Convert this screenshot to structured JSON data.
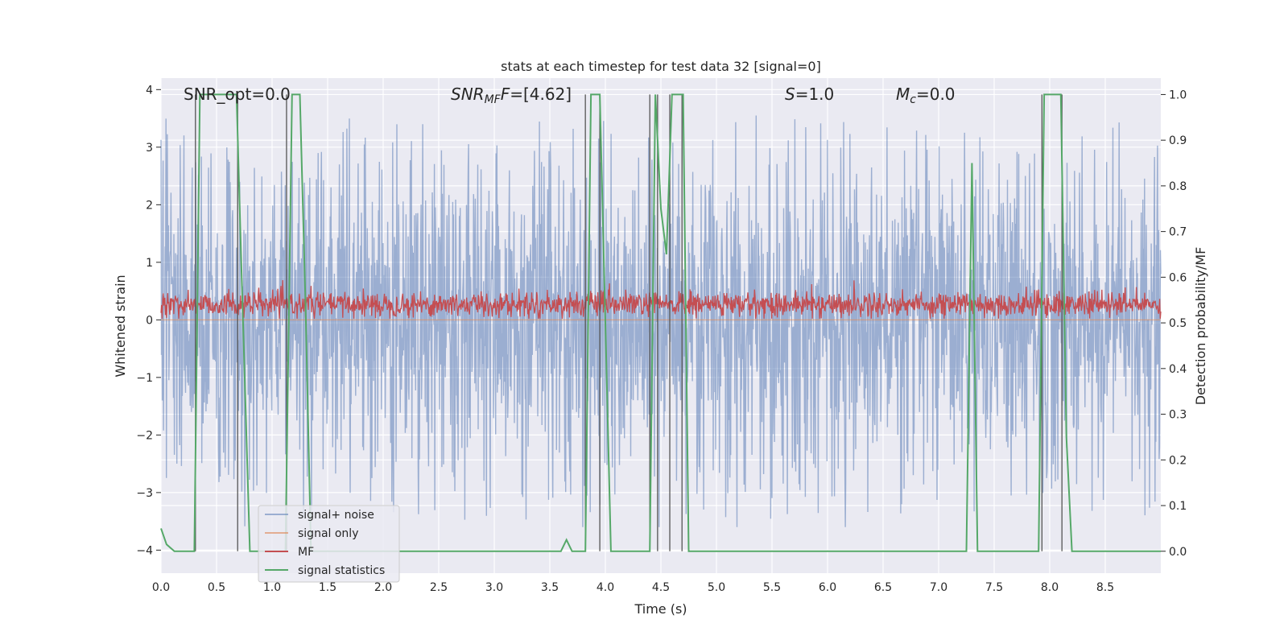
{
  "chart_data": {
    "type": "line",
    "title": "stats at each timestep for test data 32 [signal=0]",
    "xlabel": "Time (s)",
    "ylabel": "Whitened strain",
    "y2label": "Detection probability/MF",
    "xlim": [
      0.0,
      9.0
    ],
    "ylim": [
      -4.4,
      4.2
    ],
    "y2lim": [
      -0.048,
      1.036
    ],
    "xticks": [
      "0.0",
      "0.5",
      "1.0",
      "1.5",
      "2.0",
      "2.5",
      "3.0",
      "3.5",
      "4.0",
      "4.5",
      "5.0",
      "5.5",
      "6.0",
      "6.5",
      "7.0",
      "7.5",
      "8.0",
      "8.5"
    ],
    "yticks": [
      "4",
      "3",
      "2",
      "1",
      "0",
      "−1",
      "−2",
      "−3",
      "−4"
    ],
    "y2ticks": [
      "1.0",
      "0.9",
      "0.8",
      "0.7",
      "0.6",
      "0.5",
      "0.4",
      "0.3",
      "0.2",
      "0.1",
      "0.0"
    ],
    "grid": true,
    "legend_position": "lower-left",
    "annotations": {
      "snr_opt": "SNR_opt=0.0",
      "snr_mf_main": "SNR",
      "snr_mf_sub": "MF",
      "snr_mf_value": "=[4.62]",
      "s_main": "S",
      "s_value": "=1.0",
      "mc_main": "M",
      "mc_sub": "c",
      "mc_value": "=0.0"
    },
    "series": [
      {
        "name": "signal+ noise",
        "color": "#4c72b0",
        "axis": "left",
        "noise_amplitude": 3.0
      },
      {
        "name": "signal only",
        "color": "#dd8452",
        "axis": "left",
        "values": [
          0
        ]
      },
      {
        "name": "MF",
        "color": "#c44e52",
        "axis": "left",
        "mean": 0.27,
        "noise_amplitude": 0.3
      },
      {
        "name": "signal statistics",
        "color": "#55a868",
        "axis": "right",
        "x": [
          0.0,
          0.05,
          0.12,
          0.3,
          0.35,
          0.5,
          0.68,
          0.72,
          0.8,
          1.12,
          1.18,
          1.25,
          1.3,
          1.35,
          1.5,
          3.6,
          3.65,
          3.7,
          3.75,
          3.82,
          3.87,
          3.95,
          4.05,
          4.35,
          4.4,
          4.45,
          4.5,
          4.55,
          4.6,
          4.65,
          4.7,
          4.75,
          5.0,
          7.25,
          7.3,
          7.35,
          7.4,
          7.9,
          7.95,
          8.0,
          8.1,
          8.15,
          8.2,
          9.0
        ],
        "y": [
          0.05,
          0.015,
          0.0,
          0.0,
          1.0,
          1.0,
          1.0,
          0.65,
          0.0,
          0.0,
          1.0,
          1.0,
          0.55,
          0.0,
          0.0,
          0.0,
          0.025,
          0.0,
          0.0,
          0.0,
          1.0,
          1.0,
          0.0,
          0.0,
          0.0,
          1.0,
          0.75,
          0.65,
          1.0,
          1.0,
          1.0,
          0.0,
          0.0,
          0.0,
          0.85,
          0.0,
          0.0,
          0.0,
          1.0,
          1.0,
          1.0,
          0.25,
          0.0,
          0.0
        ]
      }
    ],
    "vertical_lines": {
      "color": "#555555",
      "x": [
        0.31,
        0.69,
        1.13,
        3.82,
        3.95,
        4.4,
        4.47,
        4.58,
        4.69,
        7.93,
        8.11
      ]
    }
  },
  "legend": {
    "items": [
      "signal+ noise",
      "signal only",
      "MF",
      "signal statistics"
    ]
  }
}
